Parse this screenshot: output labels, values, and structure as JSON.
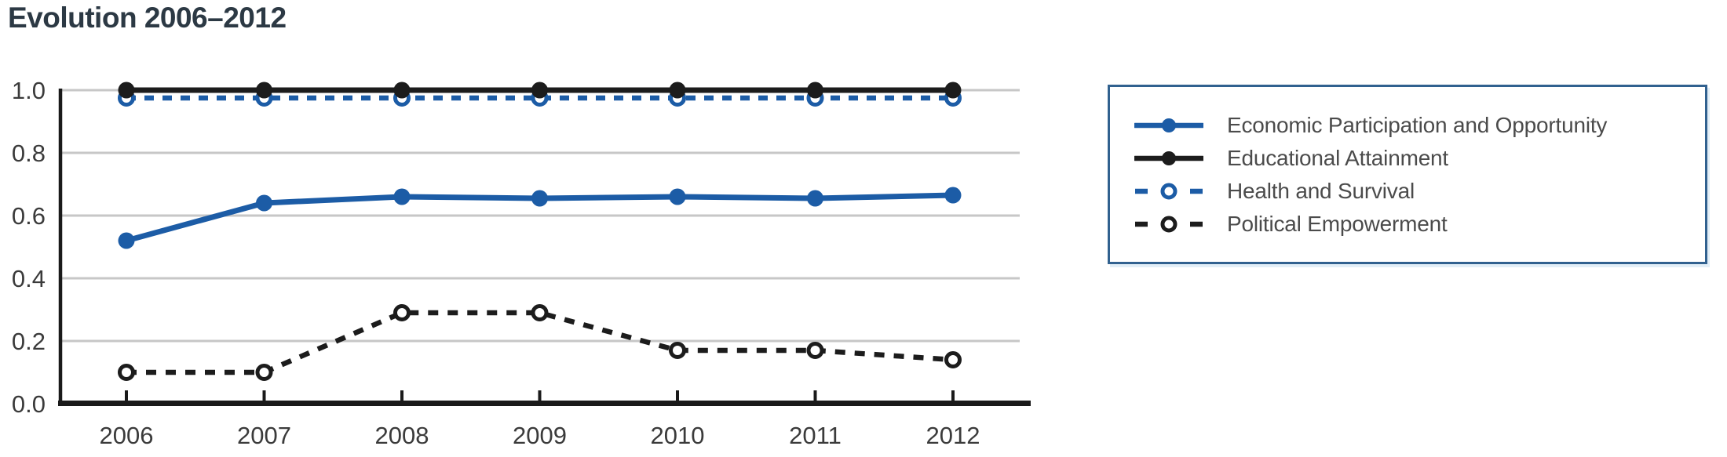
{
  "title": "Evolution 2006–2012",
  "colors": {
    "series_blue": "#1c5ca6",
    "series_black": "#1c1c1c",
    "grid": "#c7c7c7",
    "axis": "#1a1a1a",
    "legend_border": "#31618f",
    "legend_text": "#4b4b4b",
    "tick_text": "#3b3b3b",
    "title_text": "#2c3944"
  },
  "axes": {
    "x_labels": [
      "2006",
      "2007",
      "2008",
      "2009",
      "2010",
      "2011",
      "2012"
    ],
    "y_labels": [
      "1.0",
      "0.8",
      "0.6",
      "0.4",
      "0.2",
      "0.0"
    ]
  },
  "chart_data": {
    "type": "line",
    "title": "Evolution 2006–2012",
    "x": [
      2006,
      2007,
      2008,
      2009,
      2010,
      2011,
      2012
    ],
    "series": [
      {
        "name": "Economic Participation and Opportunity",
        "color": "#1c5ca6",
        "line": "solid",
        "marker": "filled",
        "values": [
          0.52,
          0.64,
          0.66,
          0.655,
          0.66,
          0.655,
          0.665
        ]
      },
      {
        "name": "Educational Attainment",
        "color": "#1c1c1c",
        "line": "solid",
        "marker": "filled",
        "values": [
          1.0,
          1.0,
          1.0,
          1.0,
          1.0,
          1.0,
          1.0
        ]
      },
      {
        "name": "Health and Survival",
        "color": "#1c5ca6",
        "line": "dashed",
        "marker": "open",
        "values": [
          0.975,
          0.975,
          0.975,
          0.975,
          0.975,
          0.975,
          0.975
        ]
      },
      {
        "name": "Political Empowerment",
        "color": "#1c1c1c",
        "line": "dashed",
        "marker": "open",
        "values": [
          0.1,
          0.1,
          0.29,
          0.29,
          0.17,
          0.17,
          0.14
        ]
      }
    ],
    "ylim": [
      0.0,
      1.0
    ],
    "yticks": [
      0.0,
      0.2,
      0.4,
      0.6,
      0.8,
      1.0
    ],
    "xlabel": "",
    "ylabel": "",
    "grid": true,
    "legend_position": "right"
  }
}
